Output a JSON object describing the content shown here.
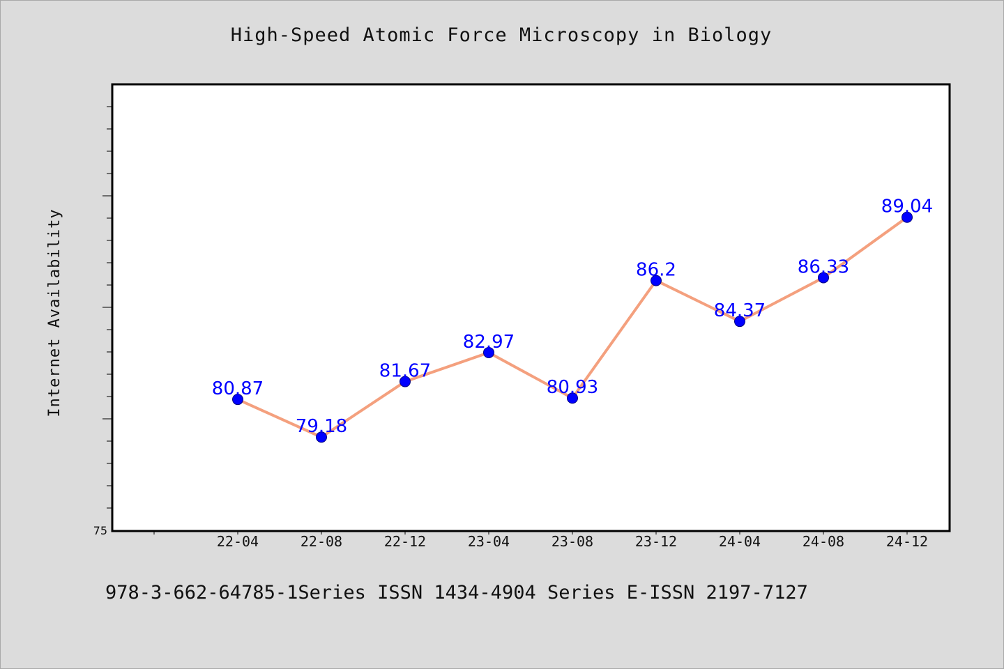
{
  "chart_data": {
    "type": "line",
    "title": "High-Speed Atomic Force Microscopy in Biology",
    "xlabel": "",
    "ylabel": "Internet Availability",
    "categories": [
      "22-04",
      "22-08",
      "22-12",
      "23-04",
      "23-08",
      "23-12",
      "24-04",
      "24-08",
      "24-12"
    ],
    "series": [
      {
        "values": [
          80.87,
          79.18,
          81.67,
          82.97,
          80.93,
          86.2,
          84.37,
          86.33,
          89.04
        ],
        "labels": [
          "80.87",
          "79.18",
          "81.67",
          "82.97",
          "80.93",
          "86.2",
          "84.37",
          "86.33",
          "89.04"
        ],
        "line_color": "#f4a07e",
        "marker_color": "#0000ff",
        "label_color": "#0000ff"
      }
    ],
    "y_tick_labels": [
      "75"
    ],
    "ylim": [
      75,
      95
    ],
    "grid": false,
    "legend": "none"
  },
  "footer": {
    "text": "978-3-662-64785-1Series ISSN 1434-4904 Series E-ISSN 2197-7127"
  },
  "colors": {
    "background": "#dcdcdc",
    "plot_background": "#ffffff",
    "axis": "#000000"
  }
}
